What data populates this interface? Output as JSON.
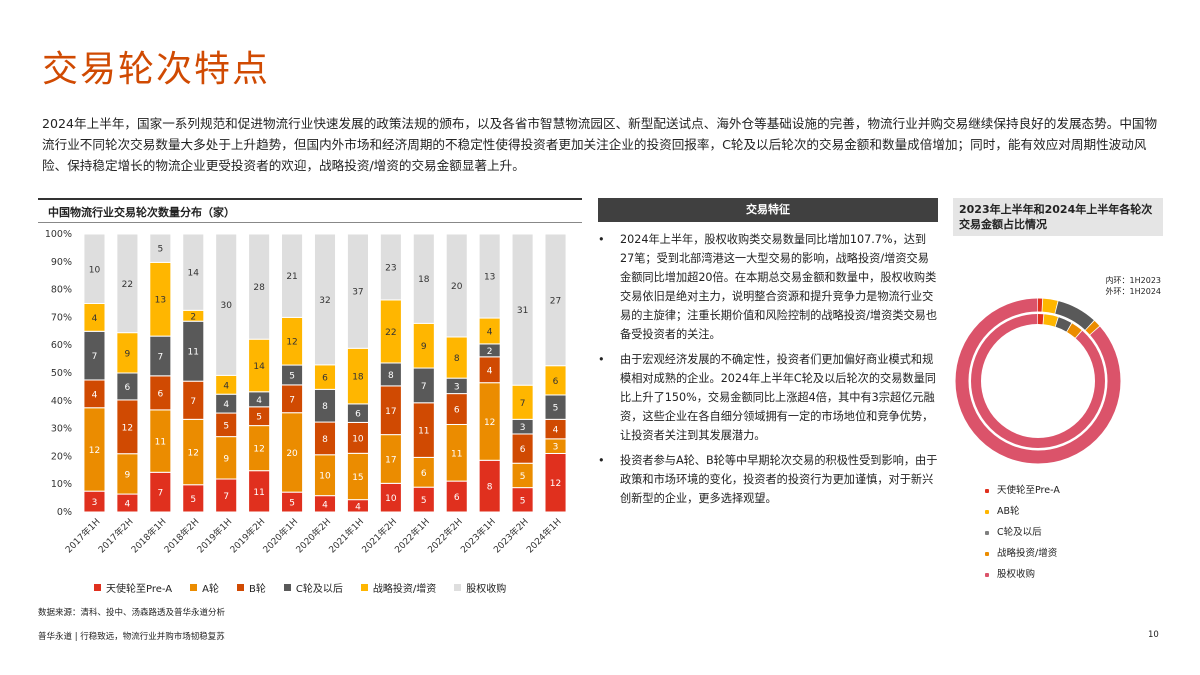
{
  "page": {
    "title": "交易轮次特点",
    "intro": "2024年上半年，国家一系列规范和促进物流行业快速发展的政策法规的颁布，以及各省市智慧物流园区、新型配送试点、海外仓等基础设施的完善，物流行业并购交易继续保持良好的发展态势。中国物流行业不同轮次交易数量大多处于上升趋势，但国内外市场和经济周期的不稳定性使得投资者更加关注企业的投资回报率，C轮及以后轮次的交易金额和数量成倍增加；同时，能有效应对周期性波动风险、保持稳定增长的物流企业更受投资者的欢迎，战略投资/增资的交易金额显著上升。",
    "source": "数据来源：清科、投中、汤森路透及普华永道分析",
    "footer": "普华永道 | 行稳致远，物流行业并购市场韧稳复苏",
    "page_number": "10"
  },
  "colors": {
    "angel": "#e0301e",
    "a_round": "#eb8c00",
    "b_round": "#d04a02",
    "c_round": "#595959",
    "strategic": "#ffb600",
    "equity": "#dedede",
    "pie_equity": "#db536a",
    "pie_ring_bg": "#ffffff"
  },
  "bar_chart": {
    "title": "中国物流行业交易轮次数量分布（家）",
    "legend": [
      "天使轮至Pre-A",
      "A轮",
      "B轮",
      "C轮及以后",
      "战略投资/增资",
      "股权收购"
    ]
  },
  "features": {
    "header": "交易特征",
    "bullets": [
      {
        "dot": "•",
        "text": "2024年上半年，股权收购类交易数量同比增加107.7%，达到27笔；受到北部湾港这一大型交易的影响，战略投资/增资交易金额同比增加超20倍。在本期总交易金额和数量中，股权收购类交易依旧是绝对主力，说明整合资源和提升竞争力是物流行业交易的主旋律；注重长期价值和风险控制的战略投资/增资类交易也备受投资者的关注。"
      },
      {
        "dot": "•",
        "text": "由于宏观经济发展的不确定性，投资者们更加偏好商业模式和规模相对成熟的企业。2024年上半年C轮及以后轮次的交易数量同比上升了150%，交易金额同比上涨超4倍，其中有3宗超亿元融资，这些企业在各自细分领域拥有一定的市场地位和竞争优势，让投资者关注到其发展潜力。"
      },
      {
        "dot": "•",
        "text": "投资者参与A轮、B轮等中早期轮次交易的积极性受到影响，由于政策和市场环境的变化，投资者的投资行为更加谨慎，对于新兴创新型的企业，更多选择观望。"
      }
    ]
  },
  "donut": {
    "title": "2023年上半年和2024年上半年各轮次交易金额占比情况",
    "inner_label": "内环：1H2023",
    "outer_label": "外环：1H2024",
    "legend": [
      {
        "dot": "•",
        "label": "天使轮至Pre-A"
      },
      {
        "dot": "•",
        "label": "AB轮"
      },
      {
        "dot": "•",
        "label": "C轮及以后"
      },
      {
        "dot": "•",
        "label": "战略投资/增资"
      },
      {
        "dot": "•",
        "label": "股权收购"
      }
    ]
  },
  "chart_data": [
    {
      "type": "bar",
      "stacked": "percent",
      "title": "中国物流行业交易轮次数量分布（家）",
      "categories": [
        "2017年1H",
        "2017年2H",
        "2018年1H",
        "2018年2H",
        "2019年1H",
        "2019年2H",
        "2020年1H",
        "2020年2H",
        "2021年1H",
        "2021年2H",
        "2022年1H",
        "2022年2H",
        "2023年1H",
        "2023年2H",
        "2024年1H"
      ],
      "yticks": [
        "0%",
        "10%",
        "20%",
        "30%",
        "40%",
        "50%",
        "60%",
        "70%",
        "80%",
        "90%",
        "100%"
      ],
      "ylim": [
        0,
        100
      ],
      "grid": false,
      "legend_position": "bottom",
      "series": [
        {
          "name": "天使轮至Pre-A",
          "values": [
            3,
            4,
            7,
            5,
            7,
            11,
            5,
            4,
            4,
            10,
            5,
            6,
            8,
            5,
            12
          ]
        },
        {
          "name": "A轮",
          "values": [
            12,
            9,
            11,
            12,
            9,
            12,
            20,
            10,
            15,
            17,
            6,
            11,
            12,
            5,
            3
          ]
        },
        {
          "name": "B轮",
          "values": [
            4,
            12,
            6,
            7,
            5,
            5,
            7,
            8,
            10,
            17,
            11,
            6,
            4,
            6,
            4
          ]
        },
        {
          "name": "C轮及以后",
          "values": [
            7,
            6,
            7,
            11,
            4,
            4,
            5,
            8,
            6,
            8,
            7,
            3,
            2,
            3,
            5
          ]
        },
        {
          "name": "战略投资/增资",
          "values": [
            4,
            9,
            13,
            2,
            4,
            14,
            12,
            6,
            18,
            22,
            9,
            8,
            4,
            7,
            6
          ]
        },
        {
          "name": "股权收购",
          "values": [
            10,
            22,
            5,
            14,
            30,
            28,
            21,
            32,
            37,
            23,
            18,
            20,
            13,
            31,
            27
          ]
        }
      ]
    },
    {
      "type": "pie",
      "variant": "double-donut",
      "title": "2023年上半年和2024年上半年各轮次交易金额占比情况",
      "categories": [
        "天使轮至Pre-A",
        "AB轮",
        "C轮及以后",
        "战略投资/增资",
        "股权收购"
      ],
      "series": [
        {
          "name": "内环：1H2023",
          "values": [
            1.5,
            3.5,
            3.5,
            3.0,
            88.5
          ]
        },
        {
          "name": "外环：1H2024",
          "values": [
            1.0,
            3.0,
            8.0,
            1.5,
            86.5
          ]
        }
      ]
    }
  ]
}
